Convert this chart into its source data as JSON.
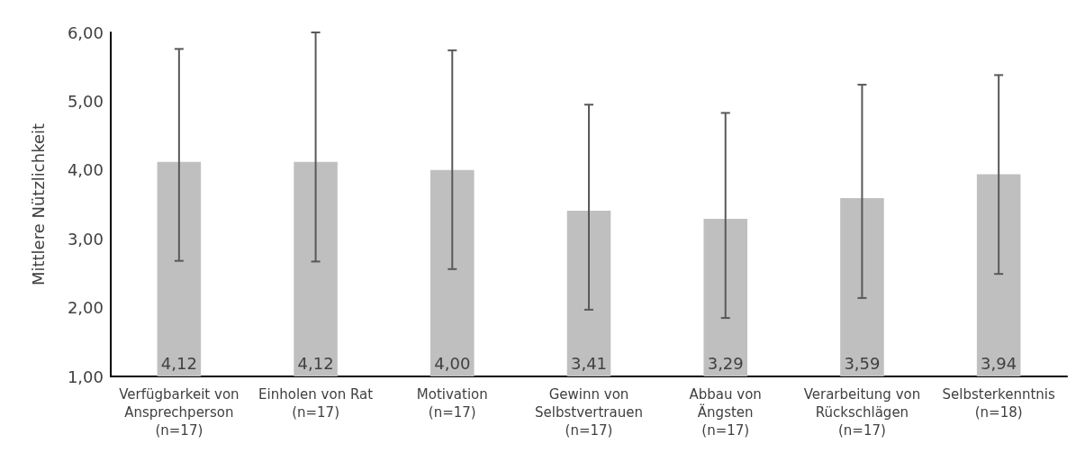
{
  "chart_data": {
    "type": "bar",
    "ylabel": "Mittlere Nützlichkeit",
    "categories": [
      "Verfügbarkeit von\nAnsprechperson\n(n=17)",
      "Einholen von Rat\n(n=17)",
      "Motivation\n(n=17)",
      "Gewinn von\nSelbstvertrauen\n(n=17)",
      "Abbau von\nÄngsten\n(n=17)",
      "Verarbeitung von\nRückschlägen\n(n=17)",
      "Selbsterkenntnis\n(n=18)"
    ],
    "values": [
      4.12,
      4.12,
      4.0,
      3.41,
      3.29,
      3.59,
      3.94
    ],
    "value_labels": [
      "4,12",
      "4,12",
      "4,00",
      "3,41",
      "3,29",
      "3,59",
      "3,94"
    ],
    "errors": [
      [
        2.68,
        5.76
      ],
      [
        2.67,
        6.0
      ],
      [
        2.56,
        5.74
      ],
      [
        1.97,
        4.95
      ],
      [
        1.85,
        4.83
      ],
      [
        2.14,
        5.24
      ],
      [
        2.49,
        5.38
      ]
    ],
    "color": "#bfbfbf",
    "ylim": [
      1,
      6
    ],
    "yticks": [
      {
        "value": 1,
        "label": "1,00"
      },
      {
        "value": 2,
        "label": "2,00"
      },
      {
        "value": 3,
        "label": "3,00"
      },
      {
        "value": 4,
        "label": "4,00"
      },
      {
        "value": 5,
        "label": "5,00"
      },
      {
        "value": 6,
        "label": "6,00"
      }
    ],
    "grid": false
  }
}
